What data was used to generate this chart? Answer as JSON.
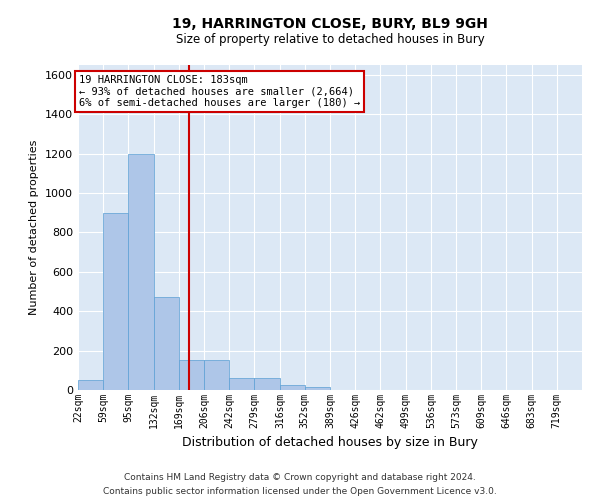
{
  "title": "19, HARRINGTON CLOSE, BURY, BL9 9GH",
  "subtitle": "Size of property relative to detached houses in Bury",
  "xlabel": "Distribution of detached houses by size in Bury",
  "ylabel": "Number of detached properties",
  "footer1": "Contains HM Land Registry data © Crown copyright and database right 2024.",
  "footer2": "Contains public sector information licensed under the Open Government Licence v3.0.",
  "property_label": "19 HARRINGTON CLOSE: 183sqm",
  "annotation1": "← 93% of detached houses are smaller (2,664)",
  "annotation2": "6% of semi-detached houses are larger (180) →",
  "property_size": 183,
  "bin_edges": [
    22,
    59,
    95,
    132,
    169,
    206,
    242,
    279,
    316,
    352,
    389,
    426,
    462,
    499,
    536,
    573,
    609,
    646,
    683,
    719,
    756
  ],
  "bar_heights": [
    50,
    900,
    1200,
    470,
    150,
    150,
    60,
    60,
    25,
    15,
    0,
    0,
    0,
    0,
    0,
    0,
    0,
    0,
    0,
    0
  ],
  "bar_color": "#aec6e8",
  "bar_edge_color": "#5a9fd4",
  "vline_color": "#cc0000",
  "box_color": "#cc0000",
  "bg_color": "#dce8f5",
  "grid_color": "#ffffff",
  "ylim": [
    0,
    1650
  ],
  "yticks": [
    0,
    200,
    400,
    600,
    800,
    1000,
    1200,
    1400,
    1600
  ]
}
